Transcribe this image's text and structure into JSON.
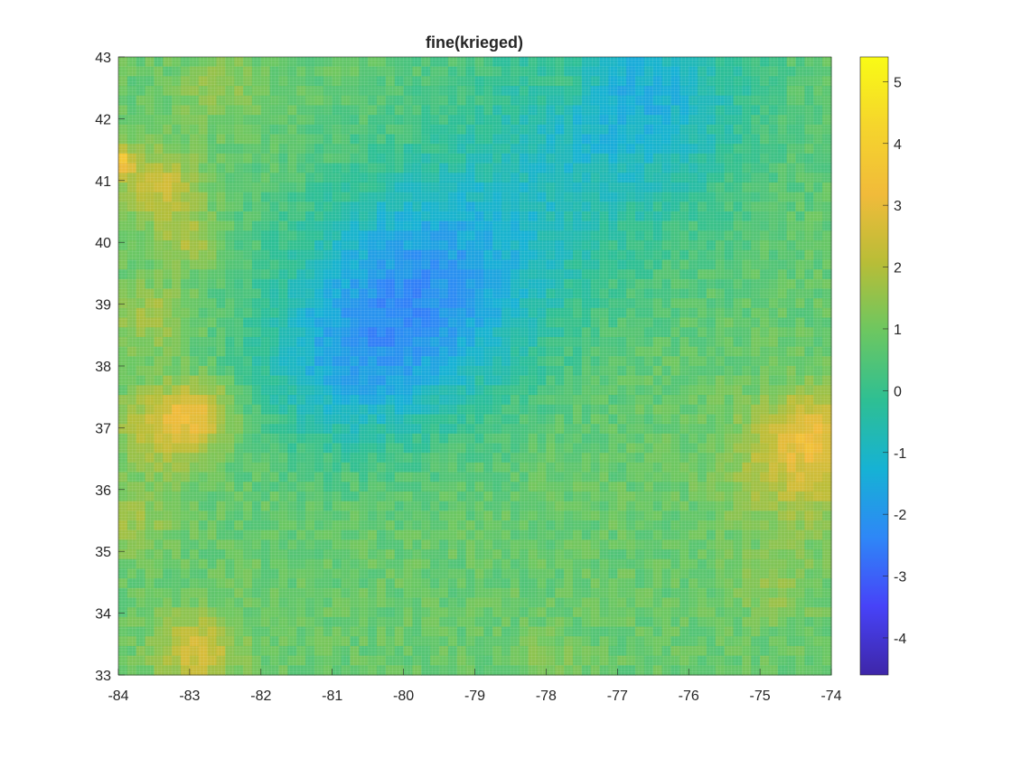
{
  "chart_data": [
    {
      "type": "heatmap",
      "title": "fine(krieged)",
      "xlabel": "",
      "ylabel": "",
      "xlim": [
        -84,
        -74
      ],
      "ylim": [
        33,
        43
      ],
      "xticks": [
        "-84",
        "-83",
        "-82",
        "-81",
        "-80",
        "-79",
        "-78",
        "-77",
        "-76",
        "-75",
        "-74"
      ],
      "yticks": [
        "33",
        "34",
        "35",
        "36",
        "37",
        "38",
        "39",
        "40",
        "41",
        "42",
        "43"
      ],
      "grid": false,
      "colormap": "parula",
      "colorbar": {
        "position": "right",
        "clim": [
          -4.6,
          5.4
        ],
        "ticks": [
          "-4",
          "-3",
          "-2",
          "-1",
          "0",
          "1",
          "2",
          "3",
          "4",
          "5"
        ],
        "colors": [
          "#3e26a8",
          "#4743f8",
          "#2e87f7",
          "#16b2d4",
          "#2ebf93",
          "#6cc761",
          "#b8bd37",
          "#f1bb3a",
          "#f5d52c",
          "#f9fb15"
        ]
      },
      "baseline_value": 0.8,
      "anomalies": [
        {
          "lon": -79.7,
          "lat": 39.3,
          "value": -1.8,
          "radius": 1.3
        },
        {
          "lon": -80.8,
          "lat": 37.9,
          "value": -0.7,
          "radius": 1.0
        },
        {
          "lon": -77.3,
          "lat": 41.6,
          "value": -0.5,
          "radius": 1.5
        },
        {
          "lon": -76.5,
          "lat": 42.6,
          "value": -0.4,
          "radius": 1.0
        },
        {
          "lon": -83.3,
          "lat": 37.0,
          "value": 2.6,
          "radius": 0.45
        },
        {
          "lon": -82.8,
          "lat": 37.3,
          "value": 2.2,
          "radius": 0.35
        },
        {
          "lon": -83.5,
          "lat": 38.8,
          "value": 1.8,
          "radius": 0.4
        },
        {
          "lon": -83.4,
          "lat": 40.9,
          "value": 2.4,
          "radius": 0.4
        },
        {
          "lon": -83.0,
          "lat": 40.0,
          "value": 1.9,
          "radius": 0.3
        },
        {
          "lon": -84.0,
          "lat": 41.3,
          "value": 3.4,
          "radius": 0.15
        },
        {
          "lon": -82.9,
          "lat": 33.4,
          "value": 2.6,
          "radius": 0.4
        },
        {
          "lon": -74.4,
          "lat": 36.4,
          "value": 2.4,
          "radius": 0.7
        },
        {
          "lon": -74.3,
          "lat": 37.0,
          "value": 2.0,
          "radius": 0.4
        },
        {
          "lon": -74.8,
          "lat": 34.4,
          "value": 1.4,
          "radius": 0.4
        },
        {
          "lon": -83.8,
          "lat": 35.5,
          "value": 1.6,
          "radius": 0.4
        },
        {
          "lon": -82.6,
          "lat": 42.5,
          "value": 1.5,
          "radius": 0.4
        },
        {
          "lon": -77.7,
          "lat": 42.6,
          "value": 1.5,
          "radius": 0.3
        },
        {
          "lon": -78.0,
          "lat": 33.2,
          "value": 1.3,
          "radius": 0.3
        }
      ]
    }
  ]
}
